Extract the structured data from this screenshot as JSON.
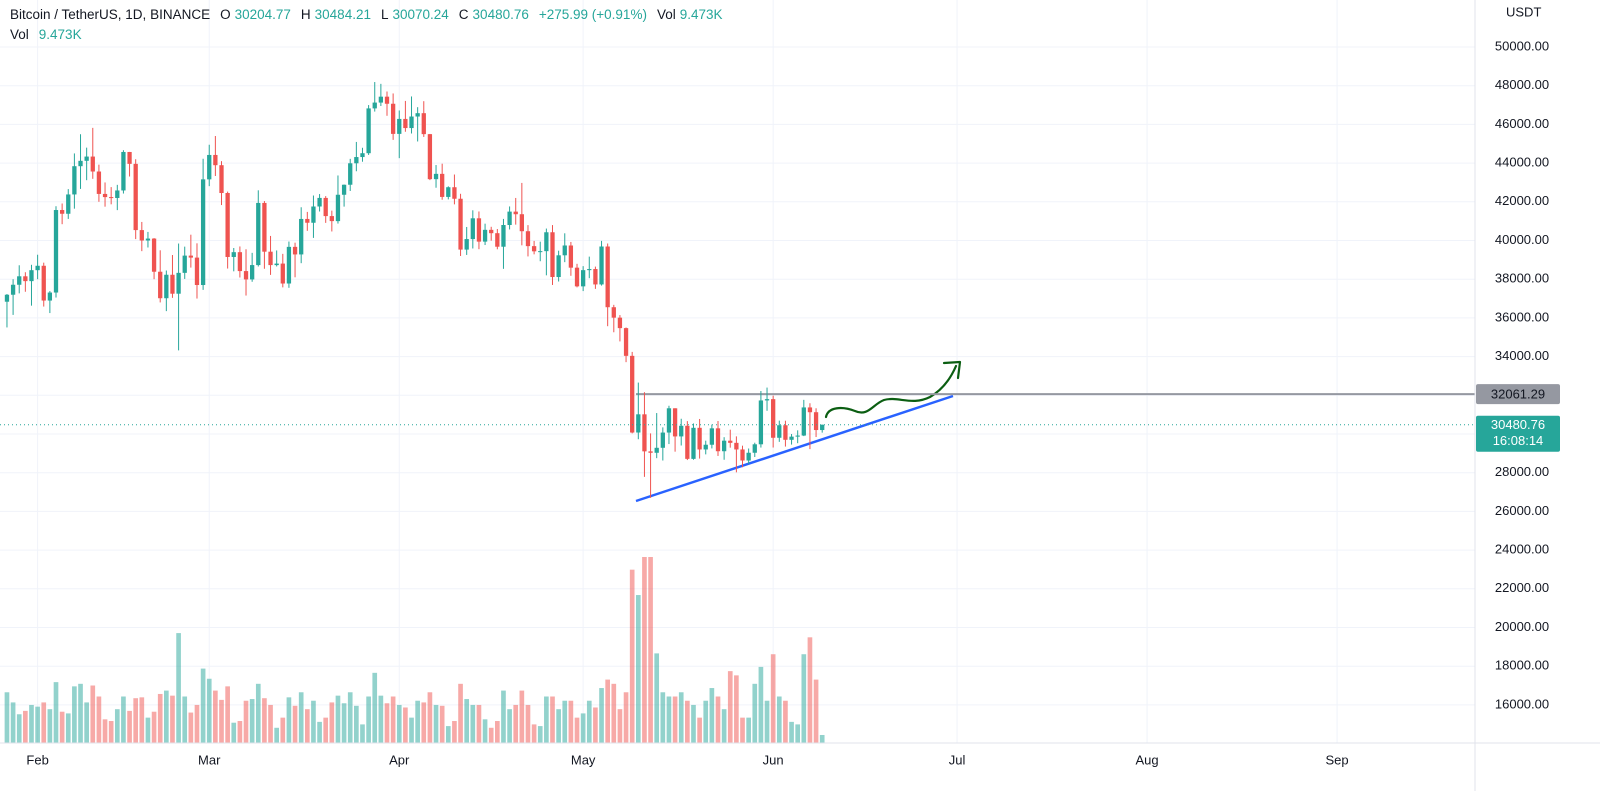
{
  "header": {
    "symbol": "Bitcoin / TetherUS, 1D, BINANCE",
    "o": "O",
    "h": "H",
    "l": "L",
    "c": "C",
    "change": "+275.99 (+0.91%)",
    "vol": "Vol",
    "vol_value": "9.473K"
  },
  "chart_data": {
    "type": "candlestick",
    "y_label": "USDT",
    "countdown": "16:08:14",
    "up_color": "#26a69a",
    "down_color": "#ef5350",
    "grid": true,
    "ylim": [
      14031,
      52429
    ],
    "yticks": [
      {
        "value": 16000,
        "label": "16000.00"
      },
      {
        "value": 18000,
        "label": "18000.00"
      },
      {
        "value": 20000,
        "label": "20000.00"
      },
      {
        "value": 22000,
        "label": "22000.00"
      },
      {
        "value": 24000,
        "label": "24000.00"
      },
      {
        "value": 26000,
        "label": "26000.00"
      },
      {
        "value": 28000,
        "label": "28000.00"
      },
      {
        "value": 30000,
        "label": "30000.00"
      },
      {
        "value": 32000,
        "label": "32000.00"
      },
      {
        "value": 34000,
        "label": "34000.00"
      },
      {
        "value": 36000,
        "label": "36000.00"
      },
      {
        "value": 38000,
        "label": "38000.00"
      },
      {
        "value": 40000,
        "label": "40000.00"
      },
      {
        "value": 42000,
        "label": "42000.00"
      },
      {
        "value": 44000,
        "label": "44000.00"
      },
      {
        "value": 46000,
        "label": "46000.00"
      },
      {
        "value": 48000,
        "label": "48000.00"
      },
      {
        "value": 50000,
        "label": "50000.00"
      }
    ],
    "hline": {
      "value": 32061.29,
      "color": "#9598a1"
    },
    "categories": [
      null,
      null,
      null,
      null,
      null,
      "Feb",
      null,
      null,
      null,
      null,
      null,
      null,
      null,
      null,
      null,
      null,
      null,
      null,
      null,
      null,
      null,
      null,
      null,
      null,
      null,
      null,
      null,
      null,
      null,
      null,
      null,
      null,
      null,
      "Mar",
      null,
      null,
      null,
      null,
      null,
      null,
      null,
      null,
      null,
      null,
      null,
      null,
      null,
      null,
      null,
      null,
      null,
      null,
      null,
      null,
      null,
      null,
      null,
      null,
      null,
      null,
      null,
      null,
      null,
      null,
      "Apr",
      null,
      null,
      null,
      null,
      null,
      null,
      null,
      null,
      null,
      null,
      null,
      null,
      null,
      null,
      null,
      null,
      null,
      null,
      null,
      null,
      null,
      null,
      null,
      null,
      null,
      null,
      null,
      null,
      null,
      "May",
      null,
      null,
      null,
      null,
      null,
      null,
      null,
      null,
      null,
      null,
      null,
      null,
      null,
      null,
      null,
      null,
      null,
      null,
      null,
      null,
      null,
      null,
      null,
      null,
      null,
      null,
      null,
      null,
      null,
      null,
      "Jun",
      null,
      null,
      null,
      null,
      null,
      null,
      null,
      null,
      null,
      null,
      null,
      null,
      null,
      null,
      null,
      null,
      null,
      null,
      null,
      null,
      null,
      null,
      null,
      null,
      null,
      null,
      null,
      null,
      null,
      "Jul",
      null,
      null,
      null,
      null,
      null,
      null,
      null,
      null,
      null,
      null,
      null,
      null,
      null,
      null,
      null,
      null,
      null,
      null,
      null,
      null,
      null,
      null,
      null,
      null,
      null,
      null,
      null,
      null,
      null,
      null,
      "Aug",
      null,
      null,
      null,
      null,
      null,
      null,
      null,
      null,
      null,
      null,
      null,
      null,
      null,
      null,
      null,
      null,
      null,
      null,
      null,
      null,
      null,
      null,
      null,
      null,
      null,
      null,
      null,
      null,
      null,
      null,
      "Sep",
      null,
      null,
      null,
      null,
      null,
      null,
      null,
      null,
      null,
      null,
      null,
      null,
      null,
      null,
      null,
      null,
      null,
      null,
      null,
      null,
      null,
      null
    ],
    "open": [
      36836,
      37197,
      37713,
      38150,
      37900,
      38466,
      38694,
      36897,
      37311,
      41575,
      41382,
      42380,
      43840,
      44118,
      44338,
      43565,
      42407,
      42244,
      42197,
      42586,
      44575,
      43961,
      40538,
      40000,
      40100,
      38386,
      37017,
      38230,
      37250,
      38328,
      39219,
      39116,
      37700,
      43160,
      44421,
      43892,
      42454,
      39148,
      39397,
      38420,
      37988,
      38730,
      41941,
      39422,
      38729,
      38807,
      37777,
      39671,
      39280,
      41114,
      40917,
      41757,
      42201,
      41262,
      41002,
      42364,
      42882,
      43991,
      44313,
      44511,
      46827,
      47128,
      47433,
      47067,
      45510,
      46283,
      45811,
      46407,
      46580,
      45497,
      43170,
      43444,
      42252,
      42753,
      42158,
      39530,
      40074,
      41147,
      39942,
      40551,
      40378,
      39678,
      40801,
      41493,
      41358,
      40480,
      39709,
      39441,
      39450,
      40426,
      38112,
      39235,
      39742,
      38596,
      37630,
      38468,
      38525,
      37729,
      39690,
      36552,
      36013,
      35472,
      34039,
      30076,
      31017,
      29103,
      29029,
      29287,
      30074,
      31329,
      29875,
      30425,
      28715,
      30320,
      29201,
      29445,
      30293,
      29110,
      29655,
      29543,
      29201,
      28630,
      29031,
      29468,
      31734,
      31801,
      29805,
      30452,
      29700,
      29864,
      29920,
      31373,
      31126,
      30204.77,
      null,
      null,
      null,
      null,
      null,
      null,
      null,
      null,
      null,
      null,
      null,
      null,
      null,
      null,
      null,
      null,
      null,
      null,
      null,
      null,
      null,
      null,
      null,
      null,
      null,
      null,
      null,
      null,
      null,
      null,
      null,
      null,
      null,
      null,
      null,
      null,
      null,
      null,
      null,
      null,
      null,
      null,
      null,
      null,
      null,
      null,
      null,
      null,
      null,
      null,
      null,
      null,
      null,
      null,
      null,
      null,
      null,
      null,
      null,
      null,
      null,
      null,
      null,
      null,
      null,
      null,
      null,
      null,
      null,
      null,
      null,
      null,
      null,
      null,
      null,
      null,
      null,
      null,
      null,
      null,
      null,
      null,
      null,
      null,
      null,
      null,
      null,
      null,
      null,
      null,
      null,
      null,
      null,
      null,
      null,
      null,
      null,
      null,
      null,
      null,
      null,
      null,
      null,
      null,
      null,
      null
    ],
    "high": [
      37234,
      38000,
      38720,
      38360,
      38744,
      39265,
      38855,
      37387,
      41772,
      41913,
      42656,
      44500,
      45492,
      44799,
      45821,
      43920,
      43000,
      42760,
      42876,
      44667,
      44578,
      44200,
      40959,
      40444,
      40125,
      39494,
      38450,
      39249,
      39843,
      39683,
      40300,
      39855,
      44225,
      44949,
      45400,
      44101,
      42527,
      39613,
      39693,
      39547,
      39362,
      42594,
      42039,
      40236,
      39486,
      39310,
      39947,
      39887,
      41718,
      41478,
      42325,
      42400,
      42296,
      41544,
      43361,
      42893,
      44220,
      45094,
      44792,
      46999,
      48189,
      48096,
      47700,
      47600,
      46720,
      47213,
      47444,
      46890,
      47200,
      45507,
      43900,
      43970,
      42800,
      43410,
      42414,
      40699,
      41561,
      41500,
      40870,
      40709,
      40595,
      41116,
      41760,
      42199,
      42976,
      40795,
      39980,
      39940,
      40617,
      40797,
      39474,
      40372,
      39925,
      38795,
      38675,
      39167,
      38651,
      39980,
      39845,
      36675,
      36146,
      35505,
      34243,
      32658,
      32162,
      30032,
      31083,
      30343,
      31460,
      31329,
      30788,
      30666,
      30545,
      30777,
      29656,
      30487,
      30670,
      29835,
      30224,
      29878,
      29397,
      29250,
      29550,
      32222,
      32399,
      31982,
      30690,
      30687,
      29999,
      30189,
      31765,
      31589,
      31330,
      30484.21,
      null,
      null,
      null,
      null,
      null,
      null,
      null,
      null,
      null,
      null,
      null,
      null,
      null,
      null,
      null,
      null,
      null,
      null,
      null,
      null,
      null,
      null,
      null,
      null,
      null,
      null,
      null,
      null,
      null,
      null,
      null,
      null,
      null,
      null,
      null,
      null,
      null,
      null,
      null,
      null,
      null,
      null,
      null,
      null,
      null,
      null,
      null,
      null,
      null,
      null,
      null,
      null,
      null,
      null,
      null,
      null,
      null,
      null,
      null,
      null,
      null,
      null,
      null,
      null,
      null,
      null,
      null,
      null,
      null,
      null,
      null,
      null,
      null,
      null,
      null,
      null,
      null,
      null,
      null,
      null,
      null,
      null,
      null,
      null,
      null,
      null,
      null,
      null,
      null,
      null,
      null,
      null,
      null,
      null,
      null,
      null,
      null,
      null,
      null,
      null,
      null,
      null,
      null,
      null,
      null,
      null
    ],
    "low": [
      35507,
      36155,
      37268,
      37351,
      36633,
      38000,
      36586,
      36250,
      37052,
      40843,
      41116,
      41645,
      42666,
      43117,
      43187,
      42000,
      41748,
      41870,
      41570,
      42427,
      43308,
      40073,
      39450,
      39639,
      38000,
      36800,
      36350,
      37036,
      34322,
      38014,
      38600,
      37000,
      37450,
      42809,
      43334,
      41832,
      38550,
      38407,
      38088,
      37155,
      37867,
      38656,
      38539,
      38223,
      38660,
      37578,
      37555,
      38098,
      38828,
      40500,
      40135,
      41499,
      40911,
      40467,
      40875,
      41751,
      42560,
      43579,
      44071,
      44422,
      46663,
      46950,
      46445,
      45200,
      44255,
      45620,
      45530,
      45118,
      45353,
      43121,
      42727,
      42107,
      42125,
      41868,
      39200,
      39254,
      39588,
      39551,
      39766,
      39991,
      39546,
      38536,
      40571,
      40820,
      39751,
      39177,
      39285,
      38929,
      38200,
      37702,
      37881,
      38881,
      38175,
      37578,
      37386,
      38052,
      37500,
      37670,
      35571,
      35258,
      34785,
      33713,
      30033,
      29730,
      27785,
      26700,
      28751,
      28630,
      29480,
      29087,
      29405,
      28654,
      28670,
      28730,
      28947,
      29255,
      28866,
      28669,
      29294,
      28019,
      28282,
      28450,
      28810,
      29299,
      31200,
      29301,
      29594,
      29350,
      29454,
      29525,
      29891,
      29219,
      29843,
      30070.24,
      null,
      null,
      null,
      null,
      null,
      null,
      null,
      null,
      null,
      null,
      null,
      null,
      null,
      null,
      null,
      null,
      null,
      null,
      null,
      null,
      null,
      null,
      null,
      null,
      null,
      null,
      null,
      null,
      null,
      null,
      null,
      null,
      null,
      null,
      null,
      null,
      null,
      null,
      null,
      null,
      null,
      null,
      null,
      null,
      null,
      null,
      null,
      null,
      null,
      null,
      null,
      null,
      null,
      null,
      null,
      null,
      null,
      null,
      null,
      null,
      null,
      null,
      null,
      null,
      null,
      null,
      null,
      null,
      null,
      null,
      null,
      null,
      null,
      null,
      null,
      null,
      null,
      null,
      null,
      null,
      null,
      null,
      null,
      null,
      null,
      null,
      null,
      null,
      null,
      null,
      null,
      null,
      null,
      null,
      null,
      null,
      null,
      null,
      null,
      null,
      null,
      null,
      null,
      null,
      null,
      null
    ],
    "close": [
      37197,
      37713,
      38150,
      37900,
      38466,
      38694,
      36897,
      37311,
      41575,
      41382,
      42380,
      43840,
      44118,
      44338,
      43565,
      42407,
      42244,
      42197,
      42586,
      44575,
      43961,
      40538,
      40000,
      40100,
      38386,
      37017,
      38230,
      37250,
      38328,
      39219,
      39116,
      37700,
      43160,
      44421,
      43892,
      42454,
      39148,
      39397,
      38420,
      37988,
      38730,
      41941,
      39422,
      38729,
      38807,
      37777,
      39671,
      39280,
      41114,
      40917,
      41757,
      42201,
      41262,
      41002,
      42364,
      42882,
      43991,
      44313,
      44511,
      46827,
      47128,
      47433,
      47067,
      45510,
      46283,
      45811,
      46407,
      46580,
      45497,
      43170,
      43444,
      42252,
      42753,
      42158,
      39530,
      40074,
      41147,
      39942,
      40551,
      40378,
      39678,
      40801,
      41493,
      41358,
      40480,
      39709,
      39441,
      39450,
      40426,
      38112,
      39235,
      39742,
      38596,
      37630,
      38468,
      38525,
      37729,
      39690,
      36552,
      36013,
      35472,
      34039,
      30076,
      31017,
      29103,
      29029,
      29287,
      30074,
      31329,
      29875,
      30425,
      28715,
      30320,
      29201,
      29445,
      30293,
      29110,
      29655,
      29543,
      29201,
      28630,
      29031,
      29468,
      31734,
      31801,
      29805,
      30452,
      29700,
      29864,
      29920,
      31373,
      31126,
      30204.77,
      30480.76,
      null,
      null,
      null,
      null,
      null,
      null,
      null,
      null,
      null,
      null,
      null,
      null,
      null,
      null,
      null,
      null,
      null,
      null,
      null,
      null,
      null,
      null,
      null,
      null,
      null,
      null,
      null,
      null,
      null,
      null,
      null,
      null,
      null,
      null,
      null,
      null,
      null,
      null,
      null,
      null,
      null,
      null,
      null,
      null,
      null,
      null,
      null,
      null,
      null,
      null,
      null,
      null,
      null,
      null,
      null,
      null,
      null,
      null,
      null,
      null,
      null,
      null,
      null,
      null,
      null,
      null,
      null,
      null,
      null,
      null,
      null,
      null,
      null,
      null,
      null,
      null,
      null,
      null,
      null,
      null,
      null,
      null,
      null,
      null,
      null,
      null,
      null,
      null,
      null,
      null,
      null,
      null,
      null,
      null,
      null,
      null,
      null,
      null,
      null,
      null,
      null,
      null,
      null,
      null,
      null,
      null
    ],
    "volume": [
      60,
      48,
      34,
      38,
      45,
      43,
      48,
      40,
      72,
      37,
      35,
      67,
      70,
      48,
      68,
      55,
      28,
      26,
      40,
      55,
      38,
      53,
      54,
      30,
      37,
      58,
      62,
      56,
      130,
      55,
      36,
      45,
      88,
      76,
      62,
      51,
      67,
      24,
      26,
      50,
      52,
      70,
      53,
      45,
      18,
      30,
      54,
      44,
      60,
      40,
      50,
      25,
      30,
      48,
      56,
      47,
      60,
      44,
      22,
      55,
      83,
      56,
      47,
      55,
      45,
      42,
      30,
      50,
      48,
      60,
      45,
      44,
      20,
      26,
      70,
      52,
      45,
      45,
      28,
      18,
      26,
      62,
      40,
      45,
      62,
      45,
      22,
      20,
      55,
      55,
      40,
      50,
      50,
      30,
      35,
      50,
      42,
      65,
      75,
      70,
      40,
      60,
      205,
      175,
      220,
      220,
      106,
      60,
      55,
      55,
      60,
      50,
      45,
      30,
      50,
      65,
      55,
      40,
      85,
      80,
      30,
      30,
      70,
      90,
      50,
      105,
      55,
      50,
      25,
      22,
      105,
      125,
      75,
      9.473,
      null,
      null,
      null,
      null,
      null,
      null,
      null,
      null,
      null,
      null,
      null,
      null,
      null,
      null,
      null,
      null,
      null,
      null,
      null,
      null,
      null,
      null,
      null,
      null,
      null,
      null,
      null,
      null,
      null,
      null,
      null,
      null,
      null,
      null,
      null,
      null,
      null,
      null,
      null,
      null,
      null,
      null,
      null,
      null,
      null,
      null,
      null,
      null,
      null,
      null,
      null,
      null,
      null,
      null,
      null,
      null,
      null,
      null,
      null,
      null,
      null,
      null,
      null,
      null,
      null,
      null,
      null,
      null,
      null,
      null,
      null,
      null,
      null,
      null,
      null,
      null,
      null,
      null,
      null,
      null,
      null,
      null,
      null,
      null,
      null,
      null,
      null,
      null,
      null,
      null,
      null,
      null,
      null,
      null,
      null,
      null,
      null,
      null,
      null,
      null,
      null,
      null,
      null,
      null,
      null,
      null
    ]
  }
}
